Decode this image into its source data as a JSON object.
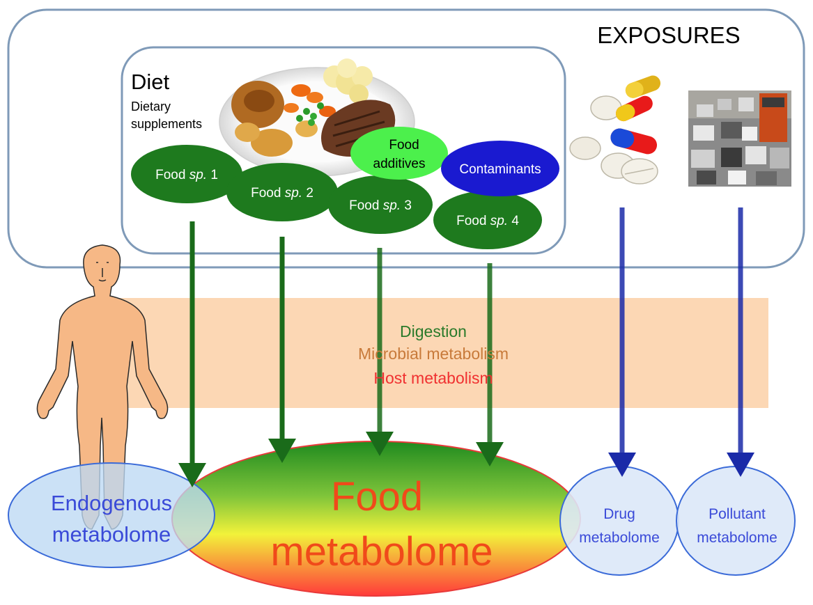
{
  "exposures_title": "EXPOSURES",
  "diet": {
    "title": "Diet",
    "supplements_line1": "Dietary",
    "supplements_line2": "supplements"
  },
  "foods": [
    {
      "prefix": "Food ",
      "species": "sp.",
      "number": " 1"
    },
    {
      "prefix": "Food ",
      "species": "sp.",
      "number": " 2"
    },
    {
      "prefix": "Food ",
      "species": "sp.",
      "number": " 3"
    },
    {
      "prefix": "Food ",
      "species": "sp.",
      "number": " 4"
    }
  ],
  "food_additives_line1": "Food",
  "food_additives_line2": "additives",
  "contaminants": "Contaminants",
  "process": {
    "digestion": "Digestion",
    "microbial": "Microbial metabolism",
    "host": "Host metabolism"
  },
  "metabolomes": {
    "endogenous_line1": "Endogenous",
    "endogenous_line2": "metabolome",
    "food_line1": "Food",
    "food_line2": "metabolome",
    "drug_line1": "Drug",
    "drug_line2": "metabolome",
    "pollutant_line1": "Pollutant",
    "pollutant_line2": "metabolome"
  },
  "colors": {
    "food_green": "#1e7a1e",
    "arrow_green": "#1a6b1a",
    "additives_green": "#4cf04c",
    "contaminants_blue": "#1a1ad0",
    "arrow_blue": "#1a2aa8",
    "band": "#fcd7b4",
    "digestion": "#2a7a2a",
    "microbial": "#c87a3a",
    "host": "#f03030",
    "food_metabolome_text": "#f04a1a",
    "metabolome_blue": "#3a4ad8",
    "frame": "#7f9ab8"
  }
}
